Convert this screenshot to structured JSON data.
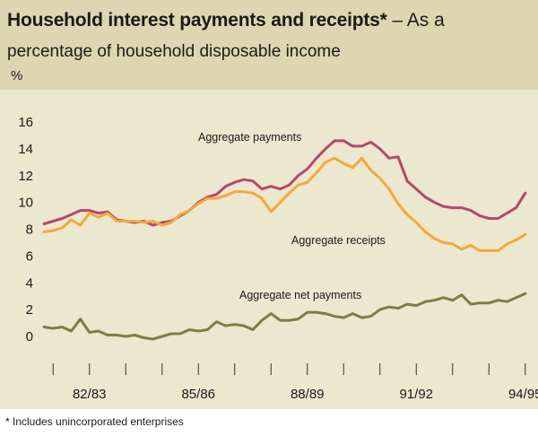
{
  "header": {
    "title_bold": "Household interest payments and receipts*",
    "title_rest": " – As a",
    "subtitle": "percentage of household disposable income",
    "unit": "%"
  },
  "footnote": "* Includes unincorporated enterprises",
  "colors": {
    "payments": "#b5496b",
    "receipts": "#f2a93b",
    "net": "#7b7f45",
    "header_bg": "#ddd6b0",
    "plot_bg": "#ece7cf"
  },
  "chart_data": {
    "type": "line",
    "title": "Household interest payments and receipts* – As a percentage of household disposable income",
    "ylabel": "%",
    "xlabel": "",
    "ylim": [
      0,
      16
    ],
    "yticks": [
      0,
      2,
      4,
      6,
      8,
      10,
      12,
      14,
      16
    ],
    "xlim": [
      1981.5,
      1995.5
    ],
    "xtick_labels": [
      {
        "x": 1983,
        "label": "82/83"
      },
      {
        "x": 1986,
        "label": "85/86"
      },
      {
        "x": 1989,
        "label": "88/89"
      },
      {
        "x": 1992,
        "label": "91/92"
      },
      {
        "x": 1995,
        "label": "94/95"
      }
    ],
    "xticks_minor": [
      1982,
      1983,
      1984,
      1985,
      1986,
      1987,
      1988,
      1989,
      1990,
      1991,
      1992,
      1993,
      1994,
      1995
    ],
    "grid": false,
    "series": [
      {
        "name": "Aggregate payments",
        "color": "#b5496b",
        "x": [
          1981.75,
          1982.0,
          1982.25,
          1982.5,
          1982.75,
          1983.0,
          1983.25,
          1983.5,
          1983.75,
          1984.0,
          1984.25,
          1984.5,
          1984.75,
          1985.0,
          1985.25,
          1985.5,
          1985.75,
          1986.0,
          1986.25,
          1986.5,
          1986.75,
          1987.0,
          1987.25,
          1987.5,
          1987.75,
          1988.0,
          1988.25,
          1988.5,
          1988.75,
          1989.0,
          1989.25,
          1989.5,
          1989.75,
          1990.0,
          1990.25,
          1990.5,
          1990.75,
          1991.0,
          1991.25,
          1991.5,
          1991.75,
          1992.0,
          1992.25,
          1992.5,
          1992.75,
          1993.0,
          1993.25,
          1993.5,
          1993.75,
          1994.0,
          1994.25,
          1994.5,
          1994.75,
          1995.0
        ],
        "values": [
          8.4,
          8.6,
          8.8,
          9.1,
          9.4,
          9.4,
          9.2,
          9.3,
          8.7,
          8.6,
          8.5,
          8.6,
          8.3,
          8.5,
          8.6,
          9.0,
          9.4,
          10.0,
          10.4,
          10.6,
          11.2,
          11.5,
          11.7,
          11.6,
          11.0,
          11.2,
          11.0,
          11.3,
          12.0,
          12.5,
          13.3,
          14.0,
          14.6,
          14.6,
          14.2,
          14.2,
          14.5,
          14.0,
          13.3,
          13.4,
          11.6,
          11.0,
          10.4,
          10.0,
          9.7,
          9.6,
          9.6,
          9.4,
          9.0,
          8.8,
          8.8,
          9.2,
          9.6,
          10.7
        ]
      },
      {
        "name": "Aggregate receipts",
        "color": "#f2a93b",
        "x": [
          1981.75,
          1982.0,
          1982.25,
          1982.5,
          1982.75,
          1983.0,
          1983.25,
          1983.5,
          1983.75,
          1984.0,
          1984.25,
          1984.5,
          1984.75,
          1985.0,
          1985.25,
          1985.5,
          1985.75,
          1986.0,
          1986.25,
          1986.5,
          1986.75,
          1987.0,
          1987.25,
          1987.5,
          1987.75,
          1988.0,
          1988.25,
          1988.5,
          1988.75,
          1989.0,
          1989.25,
          1989.5,
          1989.75,
          1990.0,
          1990.25,
          1990.5,
          1990.75,
          1991.0,
          1991.25,
          1991.5,
          1991.75,
          1992.0,
          1992.25,
          1992.5,
          1992.75,
          1993.0,
          1993.25,
          1993.5,
          1993.75,
          1994.0,
          1994.25,
          1994.5,
          1994.75,
          1995.0
        ],
        "values": [
          7.8,
          7.9,
          8.1,
          8.7,
          8.3,
          9.2,
          8.9,
          9.2,
          8.6,
          8.6,
          8.6,
          8.5,
          8.6,
          8.3,
          8.5,
          9.1,
          9.4,
          9.9,
          10.3,
          10.3,
          10.5,
          10.8,
          10.8,
          10.7,
          10.3,
          9.3,
          10.0,
          10.7,
          11.3,
          11.5,
          12.2,
          13.0,
          13.3,
          12.9,
          12.6,
          13.3,
          12.4,
          11.8,
          11.0,
          9.9,
          9.1,
          8.5,
          7.8,
          7.3,
          7.0,
          6.9,
          6.5,
          6.8,
          6.4,
          6.4,
          6.4,
          6.9,
          7.2,
          7.6
        ]
      },
      {
        "name": "Aggregate net payments",
        "color": "#7b7f45",
        "x": [
          1981.75,
          1982.0,
          1982.25,
          1982.5,
          1982.75,
          1983.0,
          1983.25,
          1983.5,
          1983.75,
          1984.0,
          1984.25,
          1984.5,
          1984.75,
          1985.0,
          1985.25,
          1985.5,
          1985.75,
          1986.0,
          1986.25,
          1986.5,
          1986.75,
          1987.0,
          1987.25,
          1987.5,
          1987.75,
          1988.0,
          1988.25,
          1988.5,
          1988.75,
          1989.0,
          1989.25,
          1989.5,
          1989.75,
          1990.0,
          1990.25,
          1990.5,
          1990.75,
          1991.0,
          1991.25,
          1991.5,
          1991.75,
          1992.0,
          1992.25,
          1992.5,
          1992.75,
          1993.0,
          1993.25,
          1993.5,
          1993.75,
          1994.0,
          1994.25,
          1994.5,
          1994.75,
          1995.0
        ],
        "values": [
          0.7,
          0.6,
          0.7,
          0.4,
          1.3,
          0.3,
          0.4,
          0.1,
          0.1,
          0.0,
          0.1,
          -0.1,
          -0.2,
          0.0,
          0.2,
          0.2,
          0.5,
          0.4,
          0.5,
          1.1,
          0.8,
          0.9,
          0.8,
          0.5,
          1.2,
          1.7,
          1.2,
          1.2,
          1.3,
          1.8,
          1.8,
          1.7,
          1.5,
          1.4,
          1.7,
          1.4,
          1.5,
          2.0,
          2.2,
          2.1,
          2.4,
          2.3,
          2.6,
          2.7,
          2.9,
          2.7,
          3.1,
          2.4,
          2.5,
          2.5,
          2.7,
          2.6,
          2.9,
          3.2
        ]
      }
    ],
    "annotations": [
      {
        "text": "Aggregate payments",
        "series": "Aggregate payments"
      },
      {
        "text": "Aggregate receipts",
        "series": "Aggregate receipts"
      },
      {
        "text": "Aggregate net payments",
        "series": "Aggregate net payments"
      }
    ]
  }
}
